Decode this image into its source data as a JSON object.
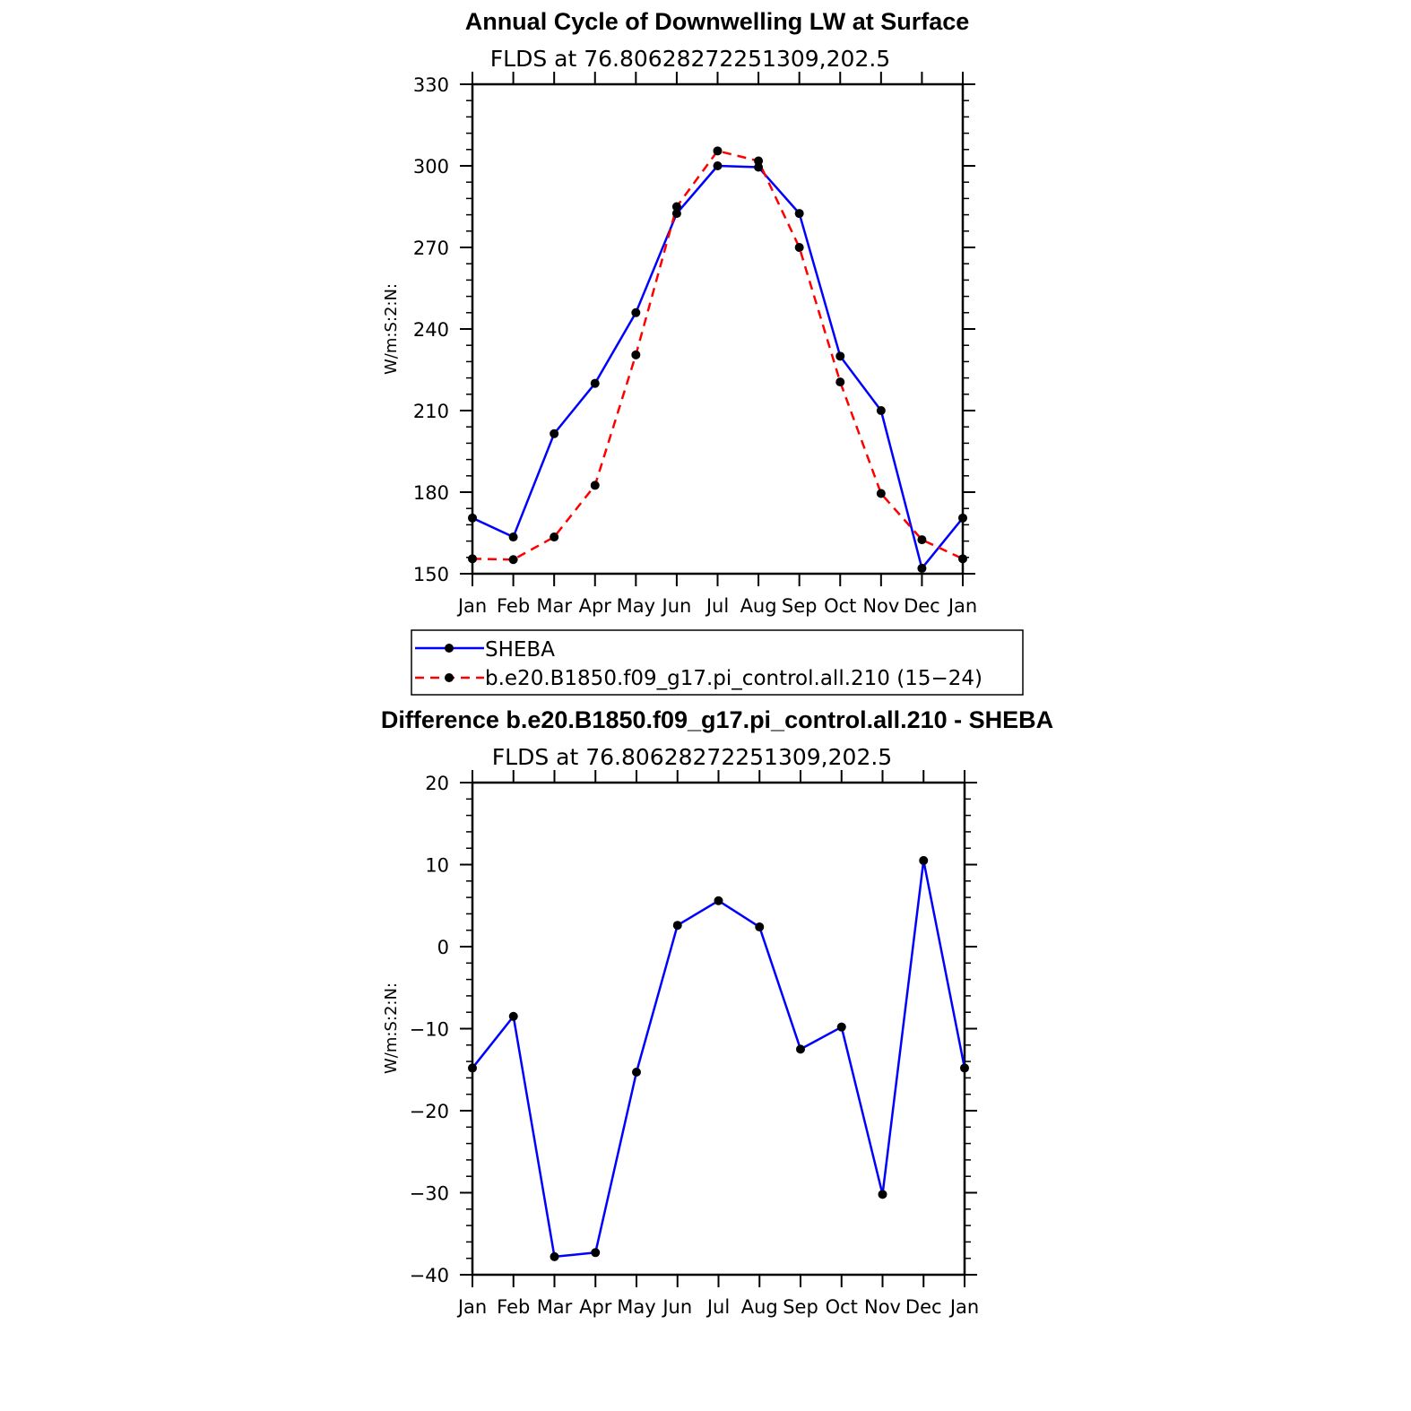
{
  "chart_data": [
    {
      "type": "line",
      "title": "Annual Cycle of Downwelling LW at Surface",
      "subtitle": "FLDS at 76.80628272251309,202.5",
      "ylabel": "W/m:S:2:N:",
      "xlabel": "",
      "categories": [
        "Jan",
        "Feb",
        "Mar",
        "Apr",
        "May",
        "Jun",
        "Jul",
        "Aug",
        "Sep",
        "Oct",
        "Nov",
        "Dec",
        "Jan"
      ],
      "ylim": [
        150,
        330
      ],
      "yticks": [
        150,
        180,
        210,
        240,
        270,
        300,
        330
      ],
      "grid": false,
      "legend_position": "below",
      "series": [
        {
          "name": "SHEBA",
          "color": "#0000ff",
          "dash": "solid",
          "values": [
            170.5,
            163.5,
            201.5,
            220.0,
            246.0,
            282.5,
            300.0,
            299.5,
            282.5,
            230.0,
            210.0,
            152.0,
            170.5
          ]
        },
        {
          "name": "b.e20.B1850.f09_g17.pi_control.all.210 (15−24)",
          "color": "#ff0000",
          "dash": "dashed",
          "values": [
            155.5,
            155.2,
            163.5,
            182.5,
            230.5,
            285.0,
            305.5,
            301.8,
            270.0,
            220.5,
            179.5,
            162.5,
            155.5
          ]
        }
      ]
    },
    {
      "type": "line",
      "title": "Difference b.e20.B1850.f09_g17.pi_control.all.210 - SHEBA",
      "subtitle": "FLDS at 76.80628272251309,202.5",
      "ylabel": "W/m:S:2:N:",
      "xlabel": "",
      "categories": [
        "Jan",
        "Feb",
        "Mar",
        "Apr",
        "May",
        "Jun",
        "Jul",
        "Aug",
        "Sep",
        "Oct",
        "Nov",
        "Dec",
        "Jan"
      ],
      "ylim": [
        -40,
        20
      ],
      "yticks": [
        -40,
        -30,
        -20,
        -10,
        0,
        10,
        20
      ],
      "grid": false,
      "series": [
        {
          "name": "",
          "color": "#0000ff",
          "dash": "solid",
          "values": [
            -14.8,
            -8.5,
            -37.8,
            -37.3,
            -15.3,
            2.6,
            5.6,
            2.4,
            -12.5,
            -9.8,
            -30.2,
            10.5,
            -14.8
          ]
        }
      ]
    }
  ]
}
